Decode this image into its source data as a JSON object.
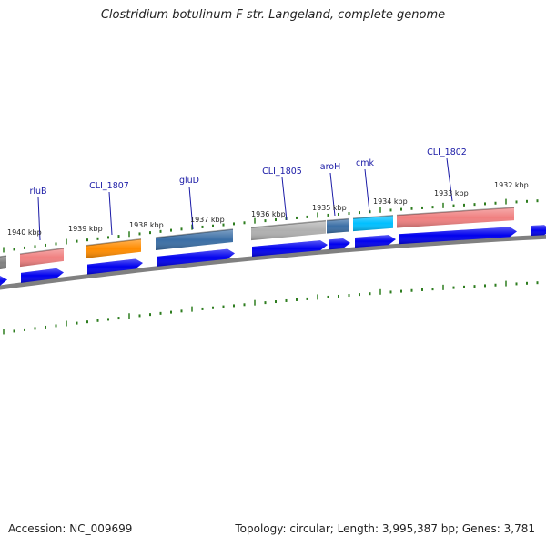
{
  "title": "Clostridium botulinum F str. Langeland, complete genome",
  "footer": {
    "accession": "Accession: NC_009699",
    "summary": "Topology: circular; Length: 3,995,387 bp; Genes: 3,781"
  },
  "colors": {
    "cds_strand": "#0000ee",
    "backbone": "#808080",
    "tick": "#2e7d1f",
    "label": "#1a1aa6"
  },
  "kbp_labels": [
    "1940 kbp",
    "1939 kbp",
    "1938 kbp",
    "1937 kbp",
    "1936 kbp",
    "1935 kbp",
    "1934 kbp",
    "1933 kbp",
    "1932 kbp"
  ],
  "genes": [
    {
      "name": "rluB",
      "color": "#f08080"
    },
    {
      "name": "CLI_1807",
      "color": "#ff8c00"
    },
    {
      "name": "gluD",
      "color": "#3a6ea5"
    },
    {
      "name": "CLI_1805",
      "color": "#b0b0b0"
    },
    {
      "name": "aroH",
      "color": "#3a6ea5"
    },
    {
      "name": "cmk",
      "color": "#00bfff"
    },
    {
      "name": "CLI_1802",
      "color": "#f08080"
    }
  ]
}
